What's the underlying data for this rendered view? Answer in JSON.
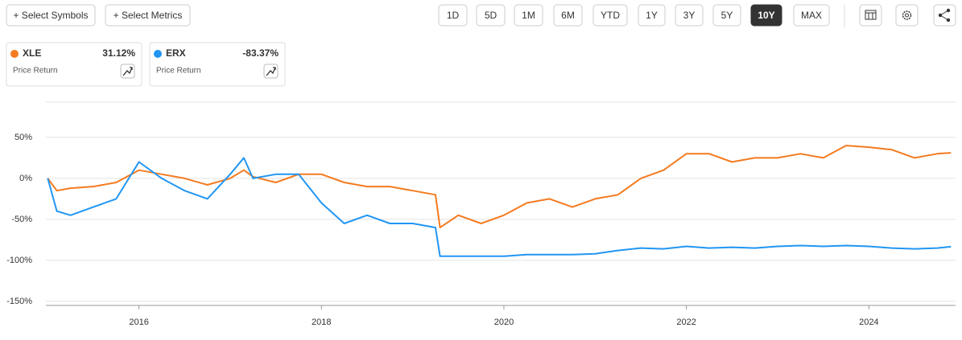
{
  "toolbar": {
    "actions": [
      "+ Select Symbols",
      "+ Select Metrics"
    ],
    "ranges": [
      "1D",
      "5D",
      "1M",
      "6M",
      "YTD",
      "1Y",
      "3Y",
      "5Y",
      "10Y",
      "MAX"
    ],
    "active_range": "10Y"
  },
  "cards": [
    {
      "symbol": "XLE",
      "change": "31.12%",
      "metric": "Price Return"
    },
    {
      "symbol": "ERX",
      "change": "-83.37%",
      "metric": "Price Return"
    }
  ],
  "chart_data": {
    "type": "line",
    "x": [
      2015.0,
      2015.1,
      2015.25,
      2015.5,
      2015.75,
      2016.0,
      2016.25,
      2016.5,
      2016.75,
      2017.0,
      2017.15,
      2017.25,
      2017.5,
      2017.75,
      2018.0,
      2018.25,
      2018.5,
      2018.75,
      2019.0,
      2019.25,
      2019.3,
      2019.5,
      2019.75,
      2020.0,
      2020.25,
      2020.5,
      2020.75,
      2021.0,
      2021.25,
      2021.5,
      2021.75,
      2022.0,
      2022.25,
      2022.5,
      2022.75,
      2023.0,
      2023.25,
      2023.5,
      2023.75,
      2024.0,
      2024.25,
      2024.5,
      2024.75,
      2024.9
    ],
    "series": [
      {
        "name": "XLE",
        "color": "#f47b20",
        "values": [
          0,
          -15,
          -12,
          -10,
          -5,
          10,
          5,
          0,
          -8,
          0,
          10,
          2,
          -5,
          5,
          5,
          -5,
          -10,
          -10,
          -15,
          -20,
          -60,
          -45,
          -55,
          -45,
          -30,
          -25,
          -35,
          -25,
          -20,
          0,
          10,
          30,
          30,
          20,
          25,
          25,
          30,
          25,
          40,
          38,
          35,
          25,
          30,
          31.12
        ]
      },
      {
        "name": "ERX",
        "color": "#2196f3",
        "values": [
          0,
          -40,
          -45,
          -35,
          -25,
          20,
          0,
          -15,
          -25,
          5,
          25,
          0,
          5,
          5,
          -30,
          -55,
          -45,
          -55,
          -55,
          -60,
          -95,
          -95,
          -95,
          -95,
          -93,
          -93,
          -93,
          -92,
          -88,
          -85,
          -86,
          -83,
          -85,
          -84,
          -85,
          -83,
          -82,
          -83,
          -82,
          -83,
          -85,
          -86,
          -85,
          -83.37
        ]
      }
    ],
    "xlim": [
      2014.98,
      2024.95
    ],
    "xticks": [
      2016,
      2018,
      2020,
      2022,
      2024
    ],
    "ylim": [
      -155,
      93
    ],
    "yticks": [
      {
        "value": 50,
        "label": "50%"
      },
      {
        "value": 0,
        "label": "0%"
      },
      {
        "value": -50,
        "label": "-50%"
      },
      {
        "value": -100,
        "label": "-100%"
      },
      {
        "value": -150,
        "label": "-150%"
      }
    ],
    "grid": true
  }
}
